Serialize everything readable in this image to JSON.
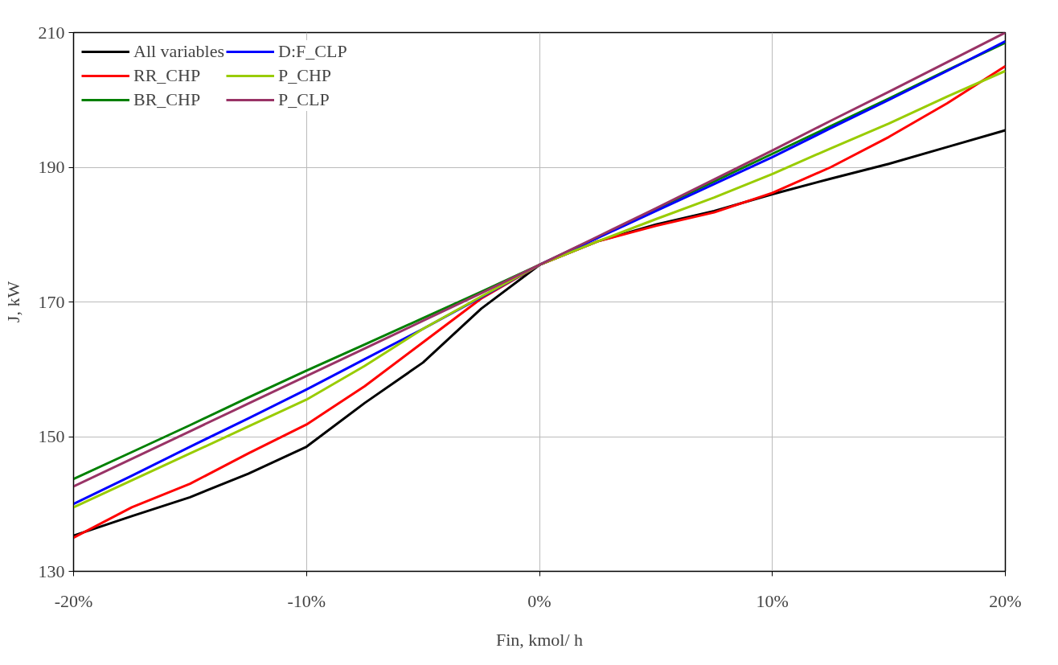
{
  "chart_data": {
    "type": "line",
    "xlabel": "Fin, kmol/ h",
    "ylabel": "J, kW",
    "xlim": [
      -20,
      20
    ],
    "ylim": [
      130,
      210
    ],
    "xticks": [
      {
        "value": -20,
        "label": "-20%"
      },
      {
        "value": -10,
        "label": "-10%"
      },
      {
        "value": 0,
        "label": "0%"
      },
      {
        "value": 10,
        "label": "10%"
      },
      {
        "value": 20,
        "label": "20%"
      }
    ],
    "yticks": [
      130,
      150,
      170,
      190,
      210
    ],
    "x": [
      -20,
      -17.5,
      -15,
      -12.5,
      -10,
      -7.5,
      -5,
      -2.5,
      0,
      2.5,
      5,
      7.5,
      10,
      12.5,
      15,
      17.5,
      20
    ],
    "series": [
      {
        "name": "All variables",
        "color": "#000000",
        "values": [
          135.3,
          138.2,
          141,
          144.5,
          148.5,
          155,
          161,
          169,
          175.5,
          179,
          181.5,
          183.5,
          186,
          188.3,
          190.5,
          193,
          195.5
        ]
      },
      {
        "name": "RR_CHP",
        "color": "#ff0000",
        "values": [
          135,
          139.5,
          143,
          147.5,
          151.8,
          157.5,
          164,
          170.5,
          175.5,
          179,
          181.3,
          183.3,
          186.2,
          190,
          194.5,
          199.5,
          205
        ]
      },
      {
        "name": "BR_CHP",
        "color": "#008000",
        "values": [
          143.7,
          147.7,
          151.7,
          155.8,
          159.8,
          163.7,
          167.6,
          171.5,
          175.5,
          179.6,
          183.8,
          187.9,
          192,
          196.1,
          200.2,
          204.4,
          208.5
        ]
      },
      {
        "name": "D:F_CLP",
        "color": "#0000ff",
        "values": [
          140,
          144.2,
          148.5,
          152.7,
          157,
          161.5,
          166,
          170.7,
          175.5,
          179.5,
          183.5,
          187.5,
          191.5,
          195.8,
          200,
          204.3,
          208.7
        ]
      },
      {
        "name": "P_CHP",
        "color": "#99cc00",
        "values": [
          139.5,
          143.5,
          147.5,
          151.5,
          155.5,
          160.5,
          166,
          170.8,
          175.5,
          179,
          182.3,
          185.5,
          189,
          192.8,
          196.5,
          200.5,
          204.3
        ]
      },
      {
        "name": "P_CLP",
        "color": "#993366",
        "values": [
          142.6,
          146.7,
          150.8,
          154.9,
          159,
          163.1,
          167.2,
          171.3,
          175.5,
          179.7,
          183.9,
          188.2,
          192.5,
          196.9,
          201.2,
          205.6,
          210
        ]
      }
    ],
    "grid": true,
    "legend": "top left",
    "line_style": "solid",
    "marker": "none"
  }
}
